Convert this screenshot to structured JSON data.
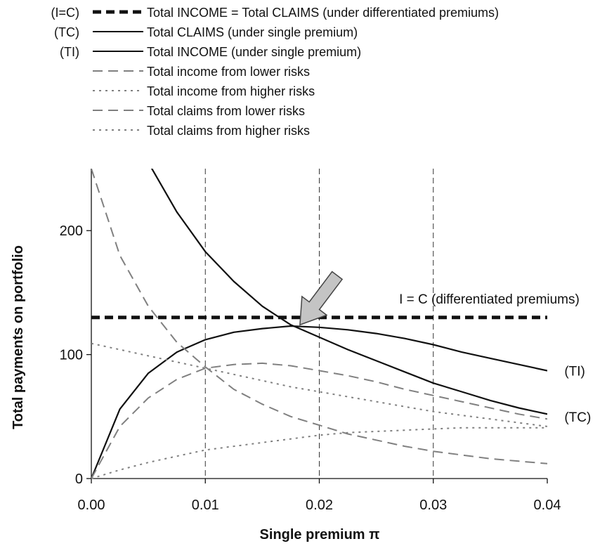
{
  "chart_data": {
    "type": "line",
    "xlabel": "Single premium π",
    "ylabel": "Total payments on portfolio",
    "xlim": [
      0,
      0.04
    ],
    "ylim": [
      0,
      250
    ],
    "x_ticks": [
      "0.00",
      "0.01",
      "0.02",
      "0.03",
      "0.04"
    ],
    "y_ticks": [
      "0",
      "100",
      "200"
    ],
    "vertical_reference_lines": [
      0.01,
      0.02,
      0.03
    ],
    "legend": [
      {
        "key": "(I=C)",
        "label": "Total INCOME = Total CLAIMS (under differentiated premiums)",
        "style": "thick-dashed",
        "color": "#111111"
      },
      {
        "key": "(TC)",
        "label": "Total CLAIMS (under single premium)",
        "style": "solid",
        "color": "#111111"
      },
      {
        "key": "(TI)",
        "label": "Total INCOME (under single premium)",
        "style": "solid",
        "color": "#111111"
      },
      {
        "key": "",
        "label": "Total income from lower risks",
        "style": "long-dash",
        "color": "#7a7a7a"
      },
      {
        "key": "",
        "label": "Total income from higher risks",
        "style": "dotted",
        "color": "#7a7a7a"
      },
      {
        "key": "",
        "label": "Total claims from lower risks",
        "style": "long-dash",
        "color": "#7a7a7a"
      },
      {
        "key": "",
        "label": "Total claims from higher risks",
        "style": "dotted",
        "color": "#7a7a7a"
      }
    ],
    "x": [
      0,
      0.0025,
      0.005,
      0.0075,
      0.01,
      0.0125,
      0.015,
      0.0175,
      0.02,
      0.0225,
      0.025,
      0.0275,
      0.03,
      0.0325,
      0.035,
      0.0375,
      0.04
    ],
    "series": [
      {
        "name": "Total INCOME = Total CLAIMS (under differentiated premiums)",
        "style": "thick-dashed",
        "values": [
          130,
          130,
          130,
          130,
          130,
          130,
          130,
          130,
          130,
          130,
          130,
          130,
          130,
          130,
          130,
          130,
          130
        ]
      },
      {
        "name": "Total CLAIMS (under single premium)",
        "values": [
          null,
          null,
          255,
          215,
          183,
          159,
          139,
          124,
          114,
          104,
          95,
          86,
          77,
          70,
          63,
          57,
          52
        ]
      },
      {
        "name": "Total INCOME (under single premium)",
        "values": [
          0,
          56,
          85,
          102,
          112,
          118,
          121,
          123,
          122,
          120,
          117,
          113,
          108,
          102,
          97,
          92,
          87
        ]
      },
      {
        "name": "Total income from lower risks",
        "style": "long-dash",
        "values": [
          0,
          42,
          65,
          80,
          89,
          92,
          93,
          91,
          87,
          83,
          78,
          72,
          67,
          62,
          57,
          52,
          48
        ]
      },
      {
        "name": "Total income from higher risks",
        "style": "dotted",
        "values": [
          0,
          7,
          13,
          18,
          23,
          26,
          29,
          32,
          35,
          37,
          38,
          39,
          40,
          41,
          41,
          41,
          41
        ]
      },
      {
        "name": "Total claims from lower risks",
        "style": "long-dash",
        "values": [
          250,
          180,
          139,
          110,
          90,
          72,
          60,
          50,
          43,
          36,
          31,
          26,
          22,
          19,
          16,
          14,
          12
        ]
      },
      {
        "name": "Total claims from higher risks",
        "style": "dotted",
        "values": [
          109,
          104,
          99,
          94,
          89,
          84,
          79,
          74,
          70,
          66,
          62,
          58,
          54,
          51,
          48,
          45,
          42
        ]
      }
    ],
    "annotations": [
      {
        "text": "I = C (differentiated premiums)",
        "x": 0.027,
        "y": 145
      },
      {
        "text": "(TI)",
        "x": 0.0415,
        "y": 87
      },
      {
        "text": "(TC)",
        "x": 0.0415,
        "y": 50
      },
      {
        "text": "",
        "type": "arrow",
        "x": 0.0183,
        "y": 124
      }
    ]
  }
}
